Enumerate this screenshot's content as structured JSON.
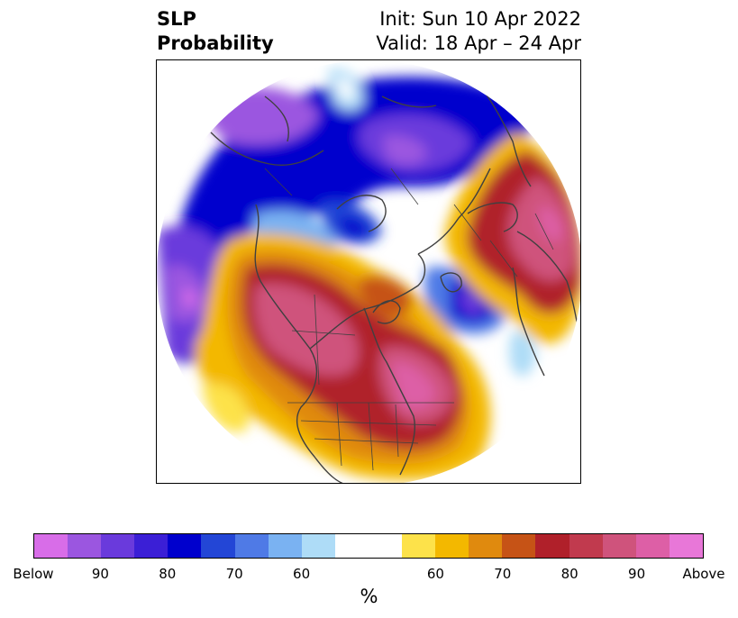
{
  "title": {
    "left_line1": "SLP",
    "left_line2": "Probability",
    "right_line1": "Init: Sun 10 Apr 2022",
    "right_line2": "Valid: 18 Apr – 24 Apr"
  },
  "colorbar": {
    "colors": [
      "#d86de8",
      "#9b56e0",
      "#6a3adc",
      "#3b1fd6",
      "#0000cd",
      "#2346d6",
      "#4f7ae6",
      "#7ab2f2",
      "#aedcf7",
      "#ffffff",
      "#ffffff",
      "#fde24a",
      "#f3b800",
      "#e08a0e",
      "#c65316",
      "#b0202a",
      "#c13a4e",
      "#cf537c",
      "#dd5fa6",
      "#e877d8"
    ],
    "tick_labels": [
      "Below",
      "90",
      "80",
      "70",
      "60",
      "60",
      "70",
      "80",
      "90",
      "Above"
    ],
    "unit": "%"
  },
  "map": {
    "projection": "north-polar-stereographic",
    "features": [
      "coastlines",
      "country-borders",
      "us-state-borders"
    ]
  }
}
